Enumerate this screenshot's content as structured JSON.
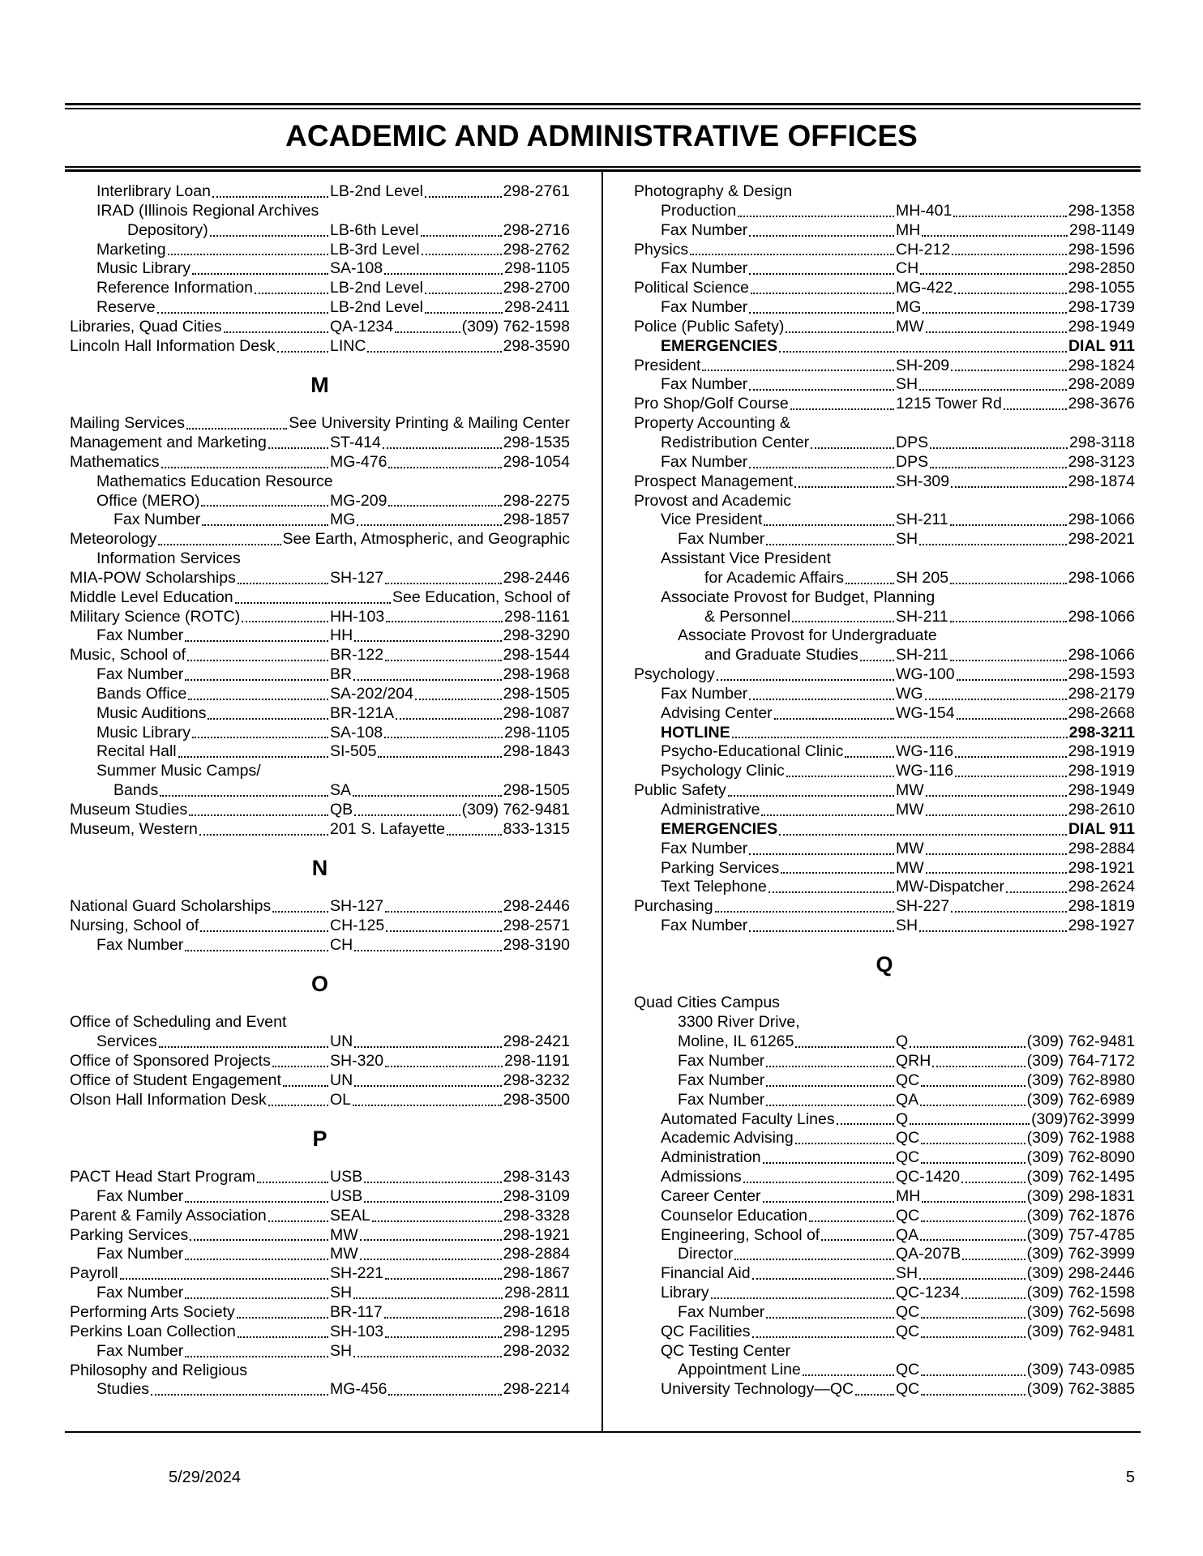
{
  "header": {
    "title": "ACADEMIC AND ADMINISTRATIVE OFFICES"
  },
  "columns": [
    {
      "sections": [
        {
          "entries": [
            {
              "name": "Interlibrary Loan",
              "location": "LB-2nd Level",
              "phone": "298-2761"
            },
            {
              "name": "IRAD (Illinois Regional Archives"
            },
            {
              "name": "Depository)",
              "location": "LB-6th Level",
              "phone": "298-2716"
            },
            {
              "name": "Marketing",
              "location": "LB-3rd Level",
              "phone": "298-2762"
            },
            {
              "name": "Music Library",
              "location": "SA-108",
              "phone": "298-1105"
            },
            {
              "name": "Reference Information",
              "location": "LB-2nd Level",
              "phone": "298-2700"
            },
            {
              "name": "Reserve",
              "location": "LB-2nd Level",
              "phone": "298-2411"
            },
            {
              "name": "Libraries, Quad Cities",
              "location": "QA-1234",
              "phone": "(309) 762-1598"
            },
            {
              "name": "Lincoln Hall Information Desk",
              "location": "LINC",
              "phone": "298-3590"
            }
          ]
        },
        {
          "letter": "M",
          "entries": [
            {
              "name": "Mailing Services",
              "see": "See University Printing & Mailing Center"
            },
            {
              "name": "Management and Marketing",
              "location": "ST-414",
              "phone": "298-1535"
            },
            {
              "name": "Mathematics",
              "location": "MG-476",
              "phone": "298-1054"
            },
            {
              "name": "Mathematics Education Resource"
            },
            {
              "name": "Office (MERO)",
              "location": "MG-209",
              "phone": "298-2275"
            },
            {
              "name": "Fax Number",
              "location": "MG",
              "phone": "298-1857"
            },
            {
              "name": "Meteorology",
              "see": "See Earth, Atmospheric, and Geographic"
            },
            {
              "name": "Information Services"
            },
            {
              "name": "MIA-POW Scholarships",
              "location": "SH-127",
              "phone": "298-2446"
            },
            {
              "name": "Middle Level Education",
              "see": "See Education, School of"
            },
            {
              "name": "Military Science (ROTC)",
              "location": "HH-103",
              "phone": "298-1161"
            },
            {
              "name": "Fax Number",
              "location": "HH",
              "phone": "298-3290"
            },
            {
              "name": "Music, School of",
              "location": "BR-122",
              "phone": "298-1544"
            },
            {
              "name": "Fax Number",
              "location": "BR",
              "phone": "298-1968"
            },
            {
              "name": "Bands Office",
              "location": "SA-202/204",
              "phone": "298-1505"
            },
            {
              "name": "Music Auditions",
              "location": "BR-121A",
              "phone": "298-1087"
            },
            {
              "name": "Music Library",
              "location": "SA-108",
              "phone": "298-1105"
            },
            {
              "name": "Recital Hall",
              "location": "SI-505",
              "phone": "298-1843"
            },
            {
              "name": "Summer Music Camps/"
            },
            {
              "name": "Bands",
              "location": "SA",
              "phone": "298-1505"
            },
            {
              "name": "Museum Studies",
              "location": "QB",
              "phone": "(309) 762-9481"
            },
            {
              "name": "Museum, Western",
              "location": "201 S. Lafayette",
              "phone": "833-1315"
            }
          ]
        },
        {
          "letter": "N",
          "entries": [
            {
              "name": "National Guard Scholarships",
              "location": "SH-127",
              "phone": "298-2446"
            },
            {
              "name": "Nursing, School of",
              "location": "CH-125",
              "phone": "298-2571"
            },
            {
              "name": "Fax Number",
              "location": "CH",
              "phone": "298-3190"
            }
          ]
        },
        {
          "letter": "O",
          "entries": [
            {
              "name": "Office of Scheduling and Event"
            },
            {
              "name": "Services",
              "location": "UN",
              "phone": "298-2421"
            },
            {
              "name": "Office of Sponsored Projects",
              "location": "SH-320",
              "phone": "298-1191"
            },
            {
              "name": "Office of Student Engagement",
              "location": "UN",
              "phone": "298-3232"
            },
            {
              "name": "Olson Hall Information Desk",
              "location": "OL",
              "phone": "298-3500"
            }
          ]
        },
        {
          "letter": "P",
          "entries": [
            {
              "name": "PACT Head Start Program",
              "location": "USB",
              "phone": "298-3143"
            },
            {
              "name": "Fax Number",
              "location": "USB",
              "phone": "298-3109"
            },
            {
              "name": "Parent & Family Association",
              "location": "SEAL",
              "phone": "298-3328"
            },
            {
              "name": "Parking Services",
              "location": "MW",
              "phone": "298-1921"
            },
            {
              "name": "Fax Number",
              "location": "MW",
              "phone": "298-2884"
            },
            {
              "name": "Payroll",
              "location": "SH-221",
              "phone": "298-1867"
            },
            {
              "name": "Fax Number",
              "location": "SH",
              "phone": "298-2811"
            },
            {
              "name": "Performing Arts Society",
              "location": "BR-117",
              "phone": "298-1618"
            },
            {
              "name": "Perkins Loan Collection",
              "location": "SH-103",
              "phone": "298-1295"
            },
            {
              "name": "Fax Number",
              "location": "SH",
              "phone": "298-2032"
            },
            {
              "name": "Philosophy and Religious"
            },
            {
              "name": "Studies",
              "location": "MG-456",
              "phone": "298-2214"
            }
          ]
        }
      ]
    },
    {
      "sections": [
        {
          "entries": [
            {
              "name": "Photography & Design"
            },
            {
              "name": "Production",
              "location": "MH-401",
              "phone": "298-1358"
            },
            {
              "name": "Fax Number",
              "location": "MH",
              "phone": "298-1149"
            },
            {
              "name": "Physics",
              "location": "CH-212",
              "phone": "298-1596"
            },
            {
              "name": "Fax Number",
              "location": "CH",
              "phone": "298-2850"
            },
            {
              "name": "Political Science",
              "location": "MG-422",
              "phone": "298-1055"
            },
            {
              "name": "Fax Number",
              "location": "MG",
              "phone": "298-1739"
            },
            {
              "name": "Police (Public Safety)",
              "location": "MW",
              "phone": "298-1949"
            },
            {
              "name": "EMERGENCIES",
              "phone": "DIAL 911",
              "bold": true
            },
            {
              "name": "President",
              "location": "SH-209",
              "phone": "298-1824"
            },
            {
              "name": "Fax Number",
              "location": "SH",
              "phone": "298-2089"
            },
            {
              "name": "Pro Shop/Golf Course",
              "location": "1215 Tower Rd",
              "phone": "298-3676"
            },
            {
              "name": "Property Accounting &"
            },
            {
              "name": "Redistribution Center",
              "location": "DPS",
              "phone": "298-3118"
            },
            {
              "name": "Fax Number",
              "location": "DPS",
              "phone": "298-3123"
            },
            {
              "name": "Prospect Management",
              "location": "SH-309",
              "phone": "298-1874"
            },
            {
              "name": "Provost and Academic"
            },
            {
              "name": "Vice President",
              "location": "SH-211",
              "phone": "298-1066"
            },
            {
              "name": "Fax Number",
              "location": "SH",
              "phone": "298-2021"
            },
            {
              "name": "Assistant Vice President"
            },
            {
              "name": "for Academic Affairs",
              "location": "SH 205",
              "phone": "298-1066"
            },
            {
              "name": "Associate Provost for Budget, Planning"
            },
            {
              "name": "& Personnel",
              "location": "SH-211",
              "phone": "298-1066"
            },
            {
              "name": "Associate Provost for Undergraduate"
            },
            {
              "name": "and Graduate Studies",
              "location": "SH-211",
              "phone": "298-1066"
            },
            {
              "name": "Psychology",
              "location": "WG-100",
              "phone": "298-1593"
            },
            {
              "name": "Fax Number",
              "location": "WG",
              "phone": "298-2179"
            },
            {
              "name": "Advising Center",
              "location": "WG-154",
              "phone": "298-2668"
            },
            {
              "name": "HOTLINE",
              "phone": "298-3211",
              "bold": true
            },
            {
              "name": "Psycho-Educational Clinic",
              "location": "WG-116",
              "phone": "298-1919"
            },
            {
              "name": "Psychology Clinic",
              "location": "WG-116",
              "phone": "298-1919"
            },
            {
              "name": "Public Safety",
              "location": "MW",
              "phone": "298-1949"
            },
            {
              "name": "Administrative",
              "location": "MW",
              "phone": "298-2610"
            },
            {
              "name": "EMERGENCIES",
              "phone": "DIAL 911",
              "bold": true
            },
            {
              "name": "Fax Number",
              "location": "MW",
              "phone": "298-2884"
            },
            {
              "name": "Parking Services",
              "location": "MW",
              "phone": "298-1921"
            },
            {
              "name": "Text Telephone",
              "location": "MW-Dispatcher",
              "phone": "298-2624"
            },
            {
              "name": "Purchasing",
              "location": "SH-227",
              "phone": "298-1819"
            },
            {
              "name": "Fax Number",
              "location": "SH",
              "phone": "298-1927"
            }
          ]
        },
        {
          "letter": "Q",
          "entries": [
            {
              "name": "Quad Cities Campus"
            },
            {
              "name": "3300 River Drive,"
            },
            {
              "name": "Moline, IL 61265",
              "location": "Q",
              "phone": "(309) 762-9481"
            },
            {
              "name": "Fax Number",
              "location": "QRH",
              "phone": "(309) 764-7172"
            },
            {
              "name": "Fax Number",
              "location": "QC",
              "phone": "(309) 762-8980"
            },
            {
              "name": "Fax Number",
              "location": "QA",
              "phone": "(309) 762-6989"
            },
            {
              "name": "Automated Faculty Lines",
              "location": "Q",
              "phone": "(309)762-3999"
            },
            {
              "name": "Academic Advising",
              "location": "QC",
              "phone": "(309) 762-1988"
            },
            {
              "name": "Administration",
              "location": "QC",
              "phone": "(309) 762-8090"
            },
            {
              "name": "Admissions",
              "location": "QC-1420",
              "phone": "(309) 762-1495"
            },
            {
              "name": "Career Center",
              "location": "MH",
              "phone": "(309) 298-1831"
            },
            {
              "name": "Counselor Education",
              "location": "QC",
              "phone": "(309) 762-1876"
            },
            {
              "name": "Engineering, School of",
              "location": "QA",
              "phone": "(309) 757-4785"
            },
            {
              "name": "Director",
              "location": "QA-207B",
              "phone": "(309) 762-3999"
            },
            {
              "name": "Financial Aid",
              "location": "SH",
              "phone": "(309) 298-2446"
            },
            {
              "name": "Library",
              "location": "QC-1234",
              "phone": "(309) 762-1598"
            },
            {
              "name": "Fax Number",
              "location": "QC",
              "phone": "(309) 762-5698"
            },
            {
              "name": "QC Facilities",
              "location": "QC",
              "phone": "(309) 762-9481"
            },
            {
              "name": "QC Testing Center"
            },
            {
              "name": "Appointment Line",
              "location": "QC",
              "phone": "(309) 743-0985"
            },
            {
              "name": "University Technology—QC",
              "location": "QC",
              "phone": "(309) 762-3885"
            }
          ]
        }
      ]
    }
  ],
  "footer": {
    "date": "5/29/2024",
    "page": "5"
  }
}
